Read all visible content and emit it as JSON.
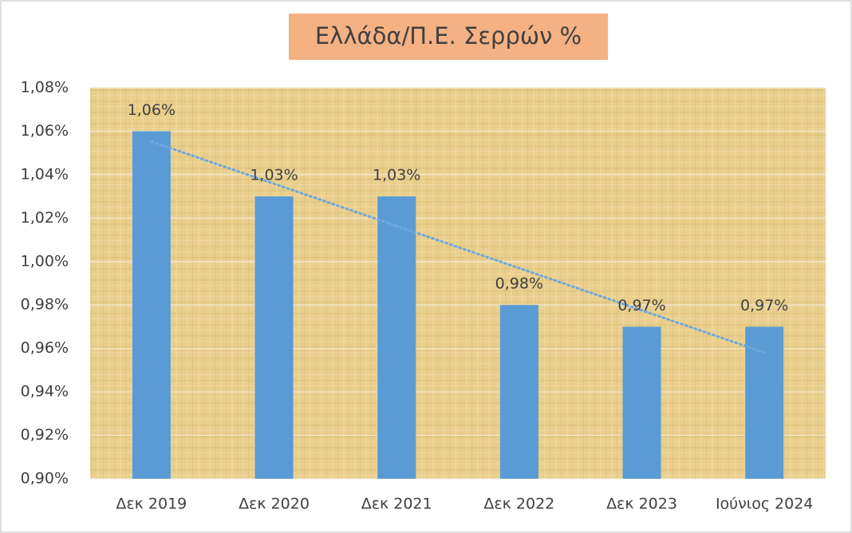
{
  "chart_data": {
    "type": "bar",
    "title": "Ελλάδα/Π.Ε. Σερρών %",
    "categories": [
      "Δεκ 2019",
      "Δεκ 2020",
      "Δεκ 2021",
      "Δεκ 2022",
      "Δεκ 2023",
      "Ιούνιος 2024"
    ],
    "values": [
      1.06,
      1.03,
      1.03,
      0.98,
      0.97,
      0.97
    ],
    "value_labels": [
      "1,06%",
      "1,03%",
      "1,03%",
      "0,98%",
      "0,97%",
      "0,97%"
    ],
    "color": "#5b9bd5",
    "trendline": true,
    "trendline_color": "#6fa8dc",
    "ylim": [
      0.9,
      1.08
    ],
    "yticks": [
      {
        "value": 0.9,
        "label": "0,90%"
      },
      {
        "value": 0.92,
        "label": "0,92%"
      },
      {
        "value": 0.94,
        "label": "0,94%"
      },
      {
        "value": 0.96,
        "label": "0,96%"
      },
      {
        "value": 0.98,
        "label": "0,98%"
      },
      {
        "value": 1.0,
        "label": "1,00%"
      },
      {
        "value": 1.02,
        "label": "1,02%"
      },
      {
        "value": 1.04,
        "label": "1,04%"
      },
      {
        "value": 1.06,
        "label": "1,06%"
      },
      {
        "value": 1.08,
        "label": "1,08%"
      }
    ],
    "grid": true
  }
}
